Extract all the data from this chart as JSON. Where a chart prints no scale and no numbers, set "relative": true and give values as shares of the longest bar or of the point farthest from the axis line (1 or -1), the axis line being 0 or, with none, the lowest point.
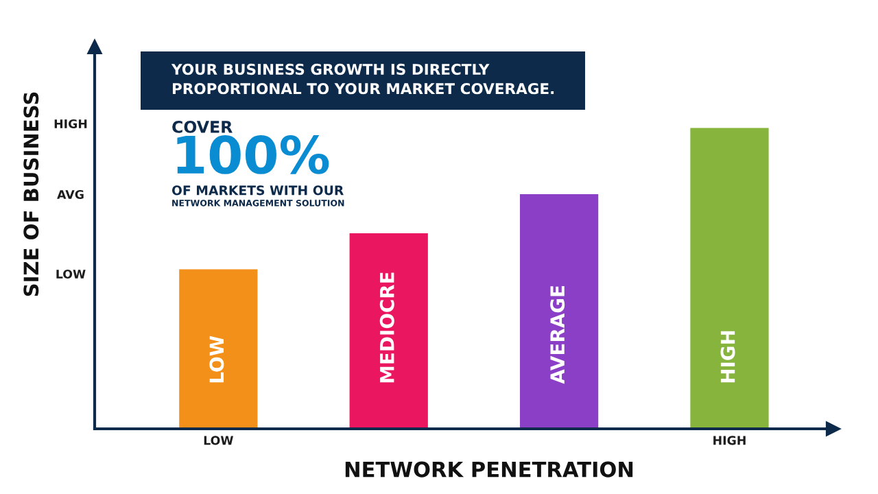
{
  "chart_data": {
    "type": "bar",
    "title": "YOUR BUSINESS GROWTH IS DIRECTLY\nPROPORTIONAL TO YOUR MARKET COVERAGE.",
    "xlabel": "NETWORK PENETRATION",
    "ylabel": "SIZE OF BUSINESS",
    "categories": [
      "LOW",
      "MEDIOCRE",
      "AVERAGE",
      "HIGH"
    ],
    "values": [
      0.53,
      0.65,
      0.78,
      1.0
    ],
    "colors": [
      "#f39019",
      "#ea1660",
      "#8b3ec6",
      "#86b43d"
    ],
    "relative": true,
    "annotations": [
      "COVER",
      "100%",
      "OF MARKETS WITH OUR",
      "NETWORK MANAGEMENT SOLUTION",
      "HIGH",
      "AVG",
      "LOW",
      "LOW",
      "HIGH"
    ]
  }
}
